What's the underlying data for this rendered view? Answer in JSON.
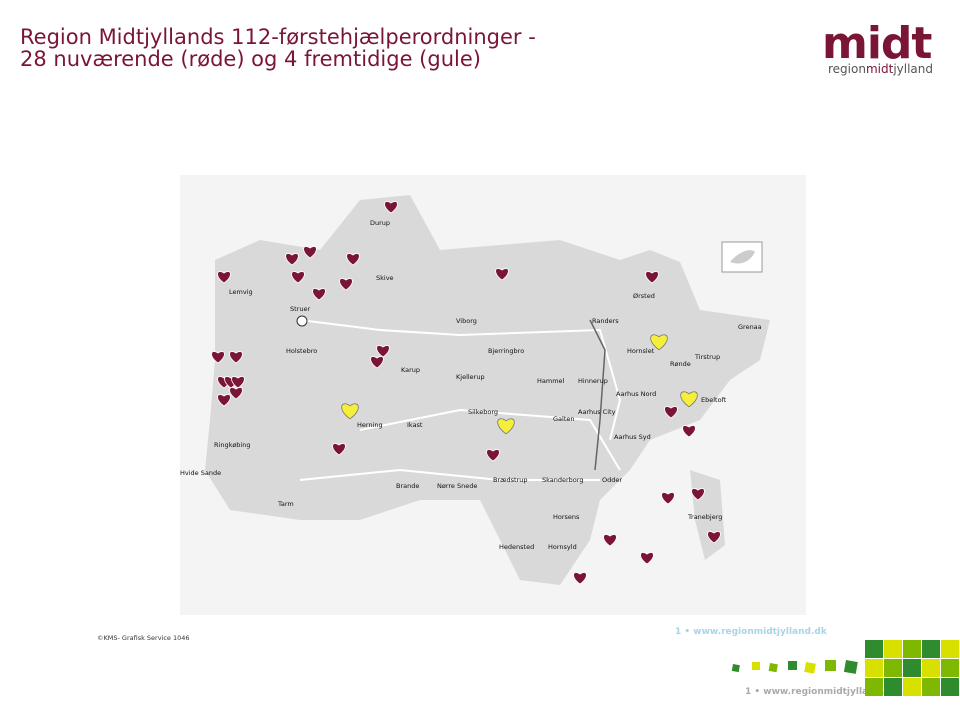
{
  "header": {
    "title_line1": "Region Midtjyllands 112-førstehjælperordninger -",
    "title_line2": "28 nuværende (røde) og 4 fremtidige (gule)"
  },
  "logo": {
    "word": "midt",
    "tagline_1": "region",
    "tagline_2": "midt",
    "tagline_3": "jylland"
  },
  "map": {
    "towns": [
      "Durup",
      "Skive",
      "Lemvig",
      "Struer",
      "Viborg",
      "Randers",
      "Ørsted",
      "Grenaa",
      "Holstebro",
      "Bjerringbro",
      "Hornslet",
      "Rønde",
      "Tirstrup",
      "Karup",
      "Kjellerup",
      "Hammel",
      "Hinnerup",
      "Aarhus Nord",
      "Ebeltoft",
      "Silkeborg",
      "Aarhus City",
      "Galten",
      "Herning",
      "Ikast",
      "Aarhus Syd",
      "Ringkøbing",
      "Hvide Sande",
      "Brædstrup",
      "Skanderborg",
      "Odder",
      "Brande",
      "Nørre Snede",
      "Tarm",
      "Tranebjerg",
      "Horsens",
      "Hedensted",
      "Hornsyld"
    ],
    "credit": "©KMS- Grafisk Service 1046"
  },
  "footer": {
    "text": "1 • www.regionmidtjylland.dk"
  }
}
